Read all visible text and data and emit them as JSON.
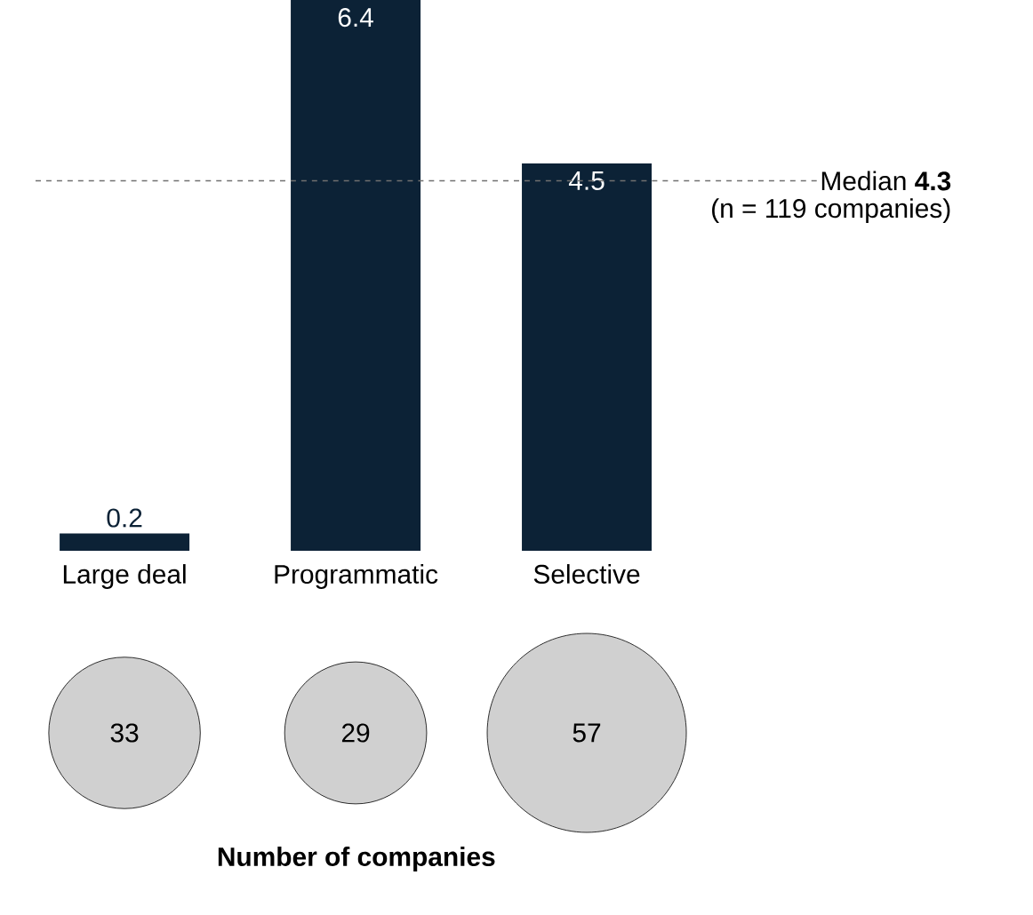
{
  "chart_data": [
    {
      "type": "bar",
      "categories": [
        "Large deal",
        "Programmatic",
        "Selective"
      ],
      "values": [
        0.2,
        6.4,
        4.5
      ],
      "color": "#0c2236",
      "ylim": [
        0,
        6.4
      ],
      "data_labels": true,
      "ref_lines": [
        {
          "axis": "y",
          "value": 4.3,
          "label": "Median **4.3**",
          "color": "#707070",
          "line_style": "dashed"
        }
      ],
      "annotations": [
        "(n = 119 companies)"
      ]
    },
    {
      "type": "other",
      "categories": [
        null,
        null,
        null
      ],
      "values": [
        33,
        29,
        57
      ],
      "data_labels": true,
      "color": "#d0d0d0",
      "xlabel": "Number of companies"
    }
  ]
}
